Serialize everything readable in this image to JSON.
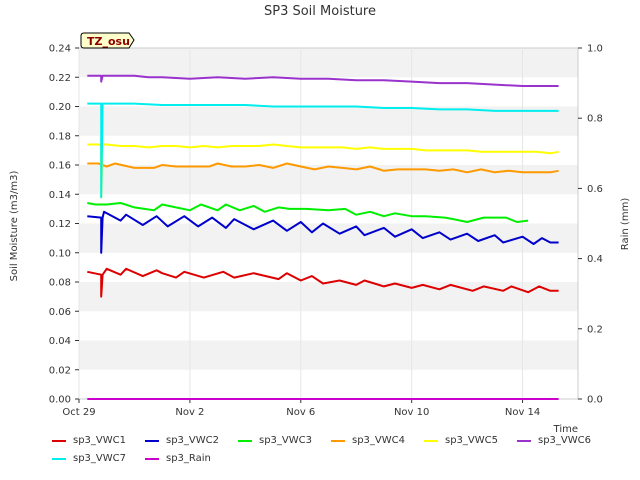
{
  "chart_data": {
    "type": "line",
    "title": "SP3 Soil Moisture",
    "xlabel": "Time",
    "ylabel": "Soil Moisture (m3/m3)",
    "y2label": "Rain (mm)",
    "badge": "TZ_osu",
    "x_ticks": [
      "Oct 29",
      "Nov 2",
      "Nov 6",
      "Nov 10",
      "Nov 14"
    ],
    "x_tick_days": [
      0,
      4,
      8,
      12,
      16
    ],
    "xlim": [
      0,
      18
    ],
    "ylim": [
      0,
      0.24
    ],
    "y_ticks": [
      "0.00",
      "0.02",
      "0.04",
      "0.06",
      "0.08",
      "0.10",
      "0.12",
      "0.14",
      "0.16",
      "0.18",
      "0.20",
      "0.22",
      "0.24"
    ],
    "y2lim": [
      0,
      1.0
    ],
    "y2_ticks": [
      "0.0",
      "0.2",
      "0.4",
      "0.6",
      "0.8",
      "1.0"
    ],
    "grid": true,
    "legend_position": "bottom",
    "series": [
      {
        "name": "sp3_VWC1",
        "color": "#dd0000",
        "axis": "left",
        "x": [
          0.3,
          0.8,
          0.8,
          0.85,
          1.0,
          1.5,
          1.7,
          2.3,
          2.8,
          3.0,
          3.5,
          3.8,
          4.5,
          5.2,
          5.6,
          6.3,
          7.2,
          7.5,
          8.0,
          8.4,
          8.8,
          9.4,
          10.0,
          10.3,
          11.0,
          11.4,
          12.0,
          12.4,
          13.0,
          13.4,
          14.2,
          14.6,
          15.3,
          15.6,
          16.2,
          16.6,
          17.0,
          17.3
        ],
        "y": [
          0.087,
          0.085,
          0.07,
          0.085,
          0.089,
          0.085,
          0.089,
          0.084,
          0.088,
          0.086,
          0.083,
          0.087,
          0.083,
          0.087,
          0.083,
          0.086,
          0.082,
          0.086,
          0.081,
          0.084,
          0.079,
          0.081,
          0.078,
          0.081,
          0.077,
          0.079,
          0.076,
          0.078,
          0.075,
          0.078,
          0.074,
          0.077,
          0.074,
          0.077,
          0.073,
          0.077,
          0.074,
          0.074
        ]
      },
      {
        "name": "sp3_VWC2",
        "color": "#0000cc",
        "axis": "left",
        "x": [
          0.3,
          0.8,
          0.8,
          0.85,
          0.9,
          1.5,
          1.7,
          2.3,
          2.8,
          3.2,
          3.8,
          4.3,
          4.8,
          5.3,
          5.6,
          6.3,
          7.0,
          7.5,
          8.0,
          8.4,
          8.8,
          9.4,
          10.0,
          10.3,
          11.0,
          11.4,
          12.0,
          12.4,
          13.0,
          13.4,
          14.0,
          14.4,
          15.0,
          15.3,
          16.0,
          16.4,
          16.7,
          17.0,
          17.3
        ],
        "y": [
          0.125,
          0.124,
          0.1,
          0.124,
          0.128,
          0.122,
          0.126,
          0.119,
          0.125,
          0.118,
          0.125,
          0.118,
          0.124,
          0.117,
          0.123,
          0.116,
          0.122,
          0.115,
          0.121,
          0.114,
          0.12,
          0.113,
          0.118,
          0.112,
          0.117,
          0.111,
          0.116,
          0.11,
          0.114,
          0.109,
          0.113,
          0.108,
          0.112,
          0.107,
          0.111,
          0.106,
          0.11,
          0.107,
          0.107
        ]
      },
      {
        "name": "sp3_VWC3",
        "color": "#00ee00",
        "axis": "left",
        "x": [
          0.3,
          0.6,
          1.0,
          1.5,
          2.0,
          2.7,
          3.0,
          3.5,
          4.0,
          4.4,
          5.0,
          5.3,
          5.8,
          6.3,
          6.7,
          7.2,
          7.6,
          8.2,
          9.0,
          9.6,
          10.0,
          10.5,
          11.0,
          11.4,
          12.0,
          12.5,
          13.2,
          13.5,
          14.0,
          14.6,
          15.4,
          15.8,
          16.2
        ],
        "y": [
          0.134,
          0.133,
          0.133,
          0.134,
          0.131,
          0.129,
          0.133,
          0.131,
          0.129,
          0.133,
          0.129,
          0.133,
          0.129,
          0.132,
          0.128,
          0.131,
          0.13,
          0.13,
          0.129,
          0.13,
          0.126,
          0.128,
          0.125,
          0.127,
          0.125,
          0.125,
          0.124,
          0.123,
          0.121,
          0.124,
          0.124,
          0.121,
          0.122
        ]
      },
      {
        "name": "sp3_VWC4",
        "color": "#ff9900",
        "axis": "left",
        "x": [
          0.3,
          0.7,
          1.0,
          1.3,
          2.0,
          2.7,
          3.0,
          3.5,
          4.0,
          4.7,
          5.0,
          5.5,
          6.0,
          6.5,
          7.0,
          7.5,
          8.0,
          8.5,
          9.0,
          9.5,
          10.0,
          10.5,
          11.0,
          11.5,
          12.0,
          12.5,
          13.0,
          13.5,
          14.0,
          14.5,
          15.0,
          15.5,
          16.0,
          16.5,
          17.0,
          17.3
        ],
        "y": [
          0.161,
          0.161,
          0.159,
          0.161,
          0.158,
          0.158,
          0.16,
          0.159,
          0.159,
          0.159,
          0.161,
          0.159,
          0.159,
          0.16,
          0.158,
          0.161,
          0.159,
          0.157,
          0.159,
          0.158,
          0.157,
          0.159,
          0.156,
          0.157,
          0.157,
          0.157,
          0.156,
          0.157,
          0.155,
          0.157,
          0.155,
          0.156,
          0.155,
          0.155,
          0.155,
          0.156
        ]
      },
      {
        "name": "sp3_VWC5",
        "color": "#ffff00",
        "axis": "left",
        "x": [
          0.3,
          0.8,
          0.8,
          0.85,
          1.0,
          1.5,
          2.0,
          2.5,
          3.0,
          3.5,
          4.0,
          4.5,
          5.0,
          5.5,
          6.0,
          6.5,
          7.0,
          7.5,
          8.0,
          8.5,
          9.0,
          9.5,
          10.0,
          10.5,
          11.0,
          11.5,
          12.0,
          12.5,
          13.0,
          13.5,
          14.0,
          14.5,
          15.0,
          15.5,
          16.0,
          16.5,
          17.0,
          17.3
        ],
        "y": [
          0.174,
          0.174,
          0.138,
          0.174,
          0.174,
          0.173,
          0.173,
          0.172,
          0.173,
          0.173,
          0.172,
          0.173,
          0.172,
          0.173,
          0.173,
          0.173,
          0.174,
          0.173,
          0.172,
          0.172,
          0.172,
          0.172,
          0.171,
          0.172,
          0.171,
          0.171,
          0.171,
          0.17,
          0.17,
          0.17,
          0.17,
          0.169,
          0.169,
          0.169,
          0.169,
          0.169,
          0.168,
          0.169
        ]
      },
      {
        "name": "sp3_VWC6",
        "color": "#9933cc",
        "axis": "left",
        "x": [
          0.3,
          0.8,
          0.8,
          0.85,
          1.0,
          2.0,
          2.5,
          3.0,
          4.0,
          5.0,
          6.0,
          7.0,
          8.0,
          9.0,
          10.0,
          11.0,
          12.0,
          13.0,
          14.0,
          15.0,
          16.0,
          17.0,
          17.3
        ],
        "y": [
          0.221,
          0.221,
          0.217,
          0.221,
          0.221,
          0.221,
          0.22,
          0.22,
          0.219,
          0.22,
          0.219,
          0.22,
          0.219,
          0.219,
          0.218,
          0.218,
          0.217,
          0.216,
          0.216,
          0.215,
          0.214,
          0.214,
          0.214
        ]
      },
      {
        "name": "sp3_VWC7",
        "color": "#00eeee",
        "axis": "left",
        "x": [
          0.3,
          0.8,
          0.8,
          0.85,
          1.0,
          2.0,
          3.0,
          4.0,
          5.0,
          6.0,
          7.0,
          8.0,
          9.0,
          10.0,
          11.0,
          12.0,
          13.0,
          14.0,
          15.0,
          16.0,
          17.0,
          17.3
        ],
        "y": [
          0.202,
          0.202,
          0.138,
          0.202,
          0.202,
          0.202,
          0.201,
          0.201,
          0.201,
          0.201,
          0.2,
          0.2,
          0.2,
          0.2,
          0.199,
          0.199,
          0.198,
          0.198,
          0.197,
          0.197,
          0.197,
          0.197
        ]
      },
      {
        "name": "sp3_Rain",
        "color": "#cc00cc",
        "axis": "right",
        "x": [
          0.3,
          17.3
        ],
        "y": [
          0.0,
          0.0
        ]
      }
    ]
  }
}
